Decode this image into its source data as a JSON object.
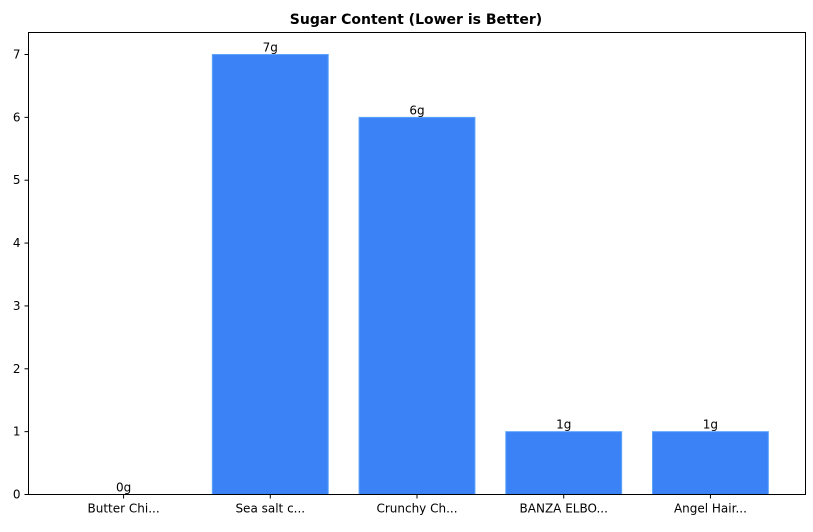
{
  "chart_data": {
    "type": "bar",
    "title": "Sugar Content (Lower is Better)",
    "xlabel": "",
    "ylabel": "",
    "categories": [
      "Butter Chi...",
      "Sea salt c...",
      "Crunchy Ch...",
      "BANZA ELBO...",
      "Angel Hair..."
    ],
    "values": [
      0,
      7,
      6,
      1,
      1
    ],
    "data_labels": [
      "0g",
      "7g",
      "6g",
      "1g",
      "1g"
    ],
    "ylim": [
      0,
      7.35
    ],
    "yticks": [
      0,
      1,
      2,
      3,
      4,
      5,
      6,
      7
    ],
    "grid": false,
    "bar_color": "#3b82f6",
    "bar_edge_color": "#60a5fa"
  }
}
